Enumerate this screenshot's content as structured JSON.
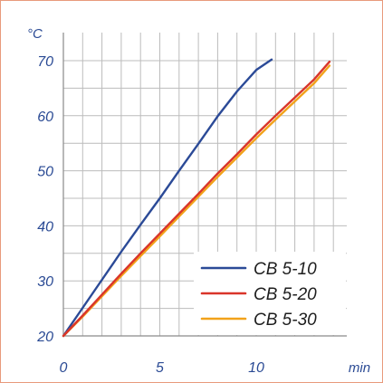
{
  "chart_data": {
    "type": "line",
    "y_unit": "°C",
    "x_unit": "min",
    "xlim": [
      0,
      14.2
    ],
    "ylim": [
      20,
      72
    ],
    "x_ticks": [
      0,
      5,
      10
    ],
    "y_ticks": [
      20,
      30,
      40,
      50,
      60,
      70
    ],
    "x_grid_step": 1,
    "y_grid_step": 5,
    "grid": true,
    "legend_position": "bottom-right",
    "series": [
      {
        "name": "CB 5-10",
        "color": "#2b4a97",
        "x": [
          0,
          1,
          2,
          3,
          4,
          5,
          6,
          7,
          8,
          9,
          10,
          10.8
        ],
        "y": [
          20,
          25.1,
          30.2,
          35.3,
          40.2,
          45.0,
          50.0,
          54.9,
          59.9,
          64.4,
          68.3,
          70.2
        ]
      },
      {
        "name": "CB 5-20",
        "color": "#d9352a",
        "x": [
          0,
          1,
          2,
          3,
          4,
          5,
          6,
          7,
          8,
          9,
          10,
          11,
          12,
          13,
          13.8
        ],
        "y": [
          20,
          23.7,
          27.5,
          31.3,
          35.0,
          38.6,
          42.2,
          45.8,
          49.5,
          53.0,
          56.6,
          60.0,
          63.3,
          66.6,
          69.8
        ]
      },
      {
        "name": "CB 5-30",
        "color": "#f2a21a",
        "x": [
          0,
          1,
          2,
          3,
          4,
          5,
          6,
          7,
          8,
          9,
          10,
          11,
          12,
          13,
          13.8
        ],
        "y": [
          20,
          23.5,
          27.2,
          30.9,
          34.5,
          38.1,
          41.7,
          45.3,
          48.9,
          52.4,
          55.9,
          59.3,
          62.6,
          65.9,
          69.1
        ]
      }
    ]
  }
}
